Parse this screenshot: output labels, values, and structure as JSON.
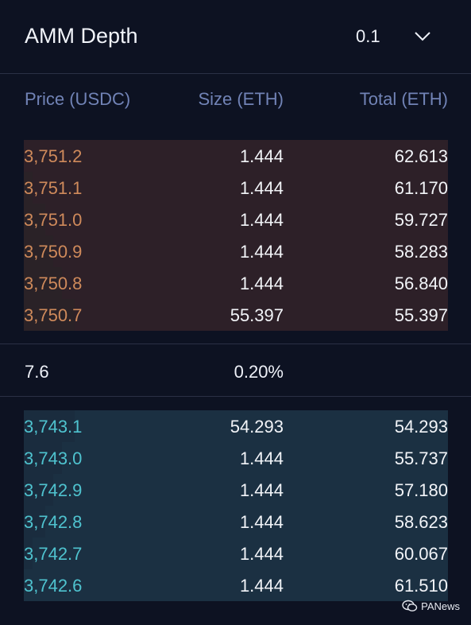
{
  "header": {
    "title": "AMM Depth",
    "precision_value": "0.1"
  },
  "columns": {
    "price": "Price (USDC)",
    "size": "Size (ETH)",
    "total": "Total (ETH)"
  },
  "asks": [
    {
      "price": "3,751.2",
      "size": "1.444",
      "total": "62.613",
      "depth_fraction": 1.0
    },
    {
      "price": "3,751.1",
      "size": "1.444",
      "total": "61.170",
      "depth_fraction": 0.98
    },
    {
      "price": "3,751.0",
      "size": "1.444",
      "total": "59.727",
      "depth_fraction": 0.95
    },
    {
      "price": "3,750.9",
      "size": "1.444",
      "total": "58.283",
      "depth_fraction": 0.93
    },
    {
      "price": "3,750.8",
      "size": "1.444",
      "total": "56.840",
      "depth_fraction": 0.91
    },
    {
      "price": "3,750.7",
      "size": "55.397",
      "total": "55.397",
      "depth_fraction": 0.88
    }
  ],
  "spread": {
    "value": "7.6",
    "percent": "0.20%"
  },
  "bids": [
    {
      "price": "3,743.1",
      "size": "54.293",
      "total": "54.293",
      "depth_fraction": 0.88
    },
    {
      "price": "3,743.0",
      "size": "1.444",
      "total": "55.737",
      "depth_fraction": 0.91
    },
    {
      "price": "3,742.9",
      "size": "1.444",
      "total": "57.180",
      "depth_fraction": 0.93
    },
    {
      "price": "3,742.8",
      "size": "1.444",
      "total": "58.623",
      "depth_fraction": 0.95
    },
    {
      "price": "3,742.7",
      "size": "1.444",
      "total": "60.067",
      "depth_fraction": 0.98
    },
    {
      "price": "3,742.6",
      "size": "1.444",
      "total": "61.510",
      "depth_fraction": 1.0
    }
  ],
  "watermark": {
    "text": "PANews",
    "icon": "wechat-icon"
  },
  "colors": {
    "ask_price": "#cf8a5b",
    "bid_price": "#4fc3cf",
    "column_header": "#7183b6",
    "background": "#0d1222"
  }
}
